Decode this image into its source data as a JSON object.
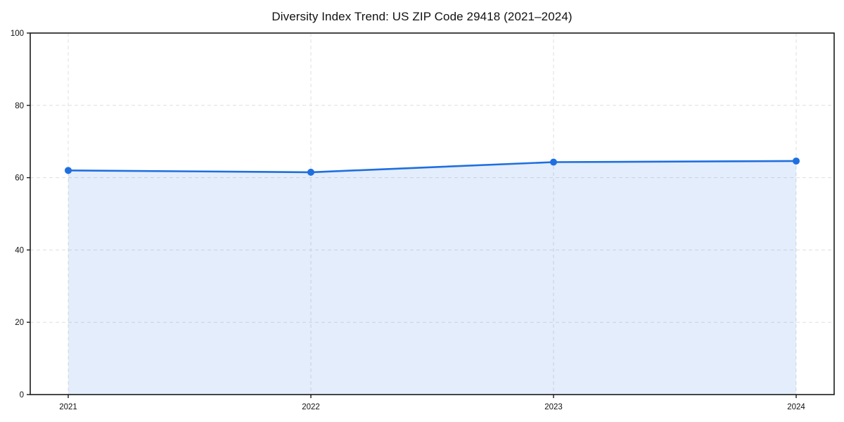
{
  "title": "Diversity Index Trend: US ZIP Code 29418 (2021–2024)",
  "chart_data": {
    "type": "area",
    "title": "Diversity Index Trend: US ZIP Code 29418 (2021–2024)",
    "x": [
      2021,
      2022,
      2023,
      2024
    ],
    "xticks": [
      "2021",
      "2022",
      "2023",
      "2024"
    ],
    "series": [
      {
        "name": "Diversity Index",
        "values": [
          62.0,
          61.5,
          64.3,
          64.6
        ]
      }
    ],
    "xlabel": "",
    "ylabel": "",
    "ylim": [
      0,
      100
    ],
    "yticks": [
      0,
      20,
      40,
      60,
      80,
      100
    ],
    "grid": "dashed",
    "legend": "none",
    "line_color": "#1f6fe0",
    "marker": "circle",
    "fill_color": "#1f6fe0",
    "fill_opacity": 0.12,
    "spine_color": "#1a1a1a",
    "background": "#ffffff"
  }
}
